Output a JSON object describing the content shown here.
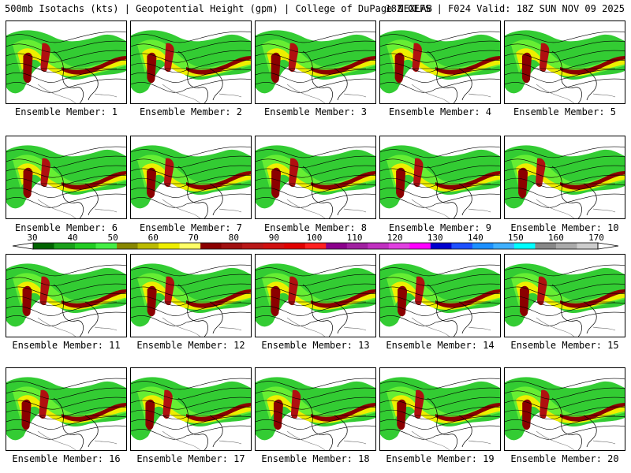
{
  "header": {
    "left": "500mb Isotachs (kts) | Geopotential Height (gpm) | College of DuPage NEXLAB",
    "right": "18Z GEFS | F024 Valid: 18Z SUN NOV 09 2025"
  },
  "caption_prefix": "Ensemble Member: ",
  "members": [
    {
      "label": "Ensemble Member: 1"
    },
    {
      "label": "Ensemble Member: 2"
    },
    {
      "label": "Ensemble Member: 3"
    },
    {
      "label": "Ensemble Member: 4"
    },
    {
      "label": "Ensemble Member: 5"
    },
    {
      "label": "Ensemble Member: 6"
    },
    {
      "label": "Ensemble Member: 7"
    },
    {
      "label": "Ensemble Member: 8"
    },
    {
      "label": "Ensemble Member: 9"
    },
    {
      "label": "Ensemble Member: 10"
    },
    {
      "label": "Ensemble Member: 11"
    },
    {
      "label": "Ensemble Member: 12"
    },
    {
      "label": "Ensemble Member: 13"
    },
    {
      "label": "Ensemble Member: 14"
    },
    {
      "label": "Ensemble Member: 15"
    },
    {
      "label": "Ensemble Member: 16"
    },
    {
      "label": "Ensemble Member: 17"
    },
    {
      "label": "Ensemble Member: 18"
    },
    {
      "label": "Ensemble Member: 19"
    },
    {
      "label": "Ensemble Member: 20"
    }
  ],
  "colorbar": {
    "labels": [
      "30",
      "40",
      "50",
      "60",
      "70",
      "80",
      "90",
      "100",
      "110",
      "120",
      "130",
      "140",
      "150",
      "160",
      "170"
    ],
    "colors": [
      "#006400",
      "#1aa01a",
      "#22cc22",
      "#44ee44",
      "#888800",
      "#bbbb00",
      "#eeee00",
      "#ffff66",
      "#8b0000",
      "#a01010",
      "#b81818",
      "#d01010",
      "#e00000",
      "#ff2020",
      "#8b008b",
      "#a020a0",
      "#c030c0",
      "#e040e0",
      "#ff00ff",
      "#0000cd",
      "#1e50ff",
      "#1e90ff",
      "#40b0ff",
      "#00ffff",
      "#888888",
      "#aaaaaa",
      "#cccccc"
    ]
  },
  "field_colors": {
    "dark_green": "#1a8c1a",
    "green": "#33cc33",
    "light_green": "#66ee33",
    "olive": "#999900",
    "yellow": "#eeee00",
    "dark_red": "#8b0000",
    "red": "#b01010"
  }
}
